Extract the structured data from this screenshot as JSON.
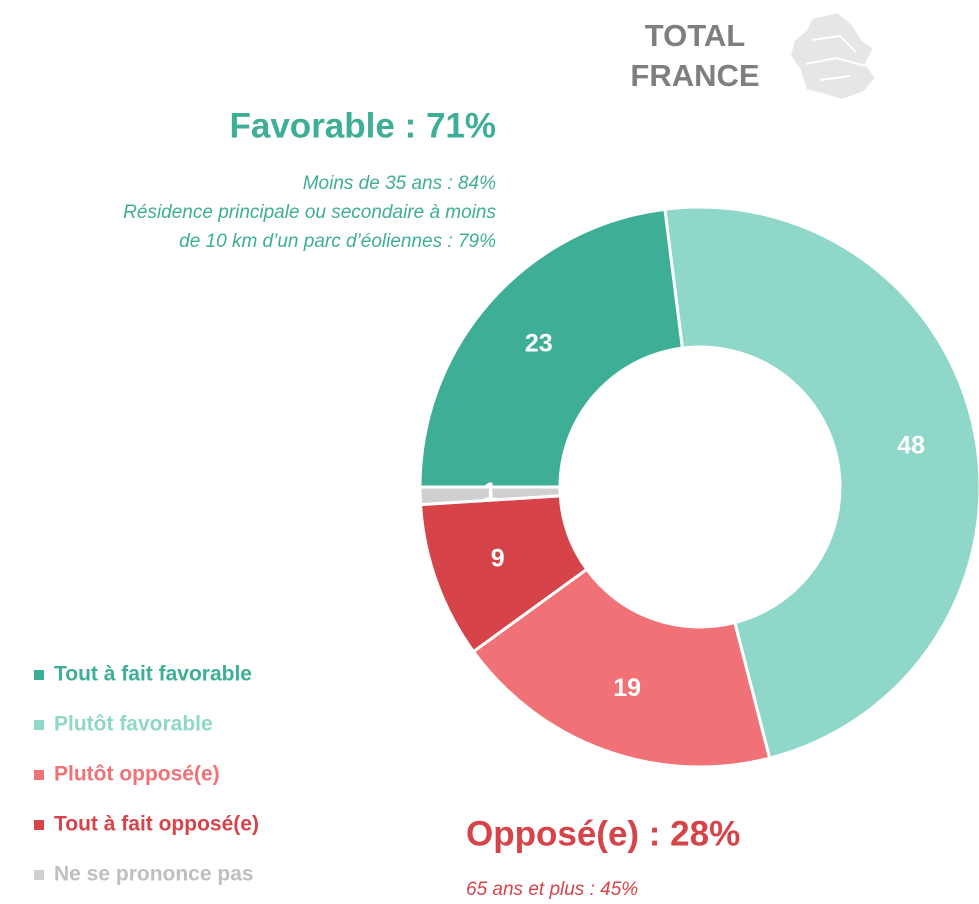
{
  "chart_data": {
    "type": "donut",
    "title": [
      "TOTAL",
      "FRANCE"
    ],
    "annotations": {
      "favorable": {
        "title": "Favorable : 71%",
        "lines": [
          "Moins de 35 ans : 84%",
          "Résidence principale ou secondaire à moins",
          "de 10 km d’un parc d’éoliennes : 79%"
        ],
        "color": "#3eae96"
      },
      "oppose": {
        "title": "Opposé(e) : 28%",
        "lines": [
          "65 ans et plus : 45%"
        ],
        "color": "#d64349"
      }
    },
    "series": [
      {
        "name": "Tout à fait favorable",
        "color": "#3eae96",
        "values": [
          23
        ]
      },
      {
        "name": "Plutôt favorable",
        "color": "#8fd7c8",
        "values": [
          48
        ]
      },
      {
        "name": "Plutôt opposé(e)",
        "color": "#f07277",
        "values": [
          19
        ]
      },
      {
        "name": "Tout à fait opposé(e)",
        "color": "#d64349",
        "values": [
          9
        ]
      },
      {
        "name": "Ne se prononce pas",
        "color": "#d0d0d0",
        "values": [
          1
        ]
      }
    ]
  }
}
